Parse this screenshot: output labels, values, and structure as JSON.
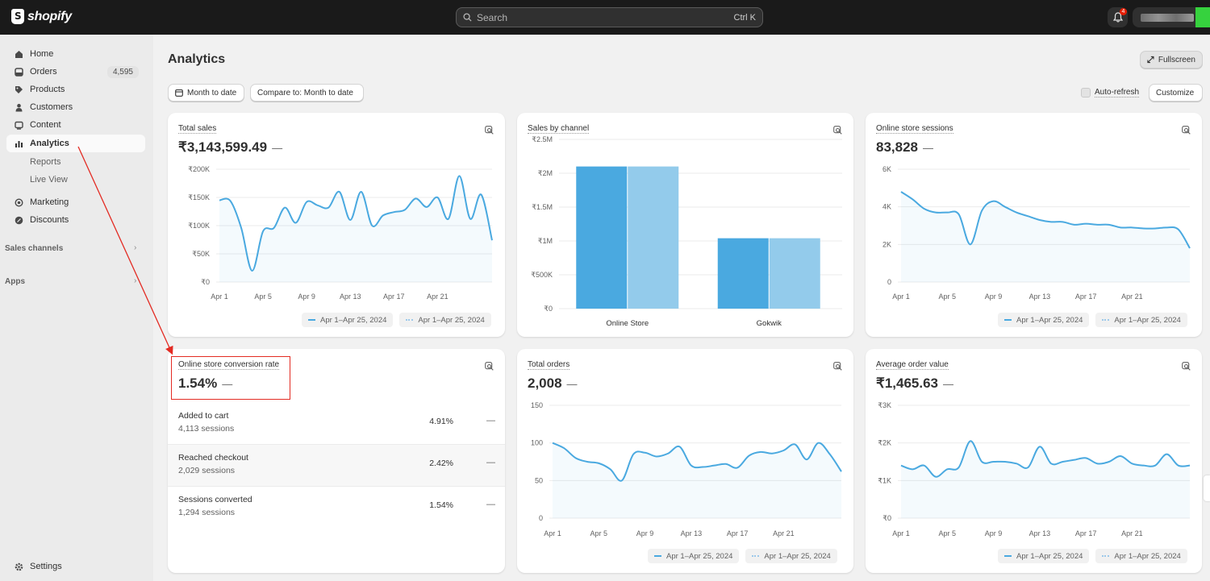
{
  "topbar": {
    "brand": "shopify",
    "search_placeholder": "Search",
    "search_shortcut": "Ctrl K",
    "notifications_count": "4"
  },
  "sidebar": {
    "items": [
      {
        "label": "Home",
        "icon": "home-icon"
      },
      {
        "label": "Orders",
        "icon": "orders-icon",
        "badge": "4,595"
      },
      {
        "label": "Products",
        "icon": "tag-icon"
      },
      {
        "label": "Customers",
        "icon": "person-icon"
      },
      {
        "label": "Content",
        "icon": "content-icon"
      },
      {
        "label": "Analytics",
        "icon": "analytics-icon",
        "active": true
      },
      {
        "label": "Marketing",
        "icon": "target-icon"
      },
      {
        "label": "Discounts",
        "icon": "discount-icon"
      }
    ],
    "analytics_sub": [
      "Reports",
      "Live View"
    ],
    "sales_channels_label": "Sales channels",
    "apps_label": "Apps",
    "settings_label": "Settings"
  },
  "header": {
    "title": "Analytics",
    "fullscreen_label": "Fullscreen",
    "date_range_label": "Month to date",
    "compare_label": "Compare to: Month to date",
    "auto_refresh_label": "Auto-refresh",
    "customize_label": "Customize"
  },
  "legend": {
    "current": "Apr 1–Apr 25, 2024",
    "previous": "Apr 1–Apr 25, 2024"
  },
  "colors": {
    "line": "#4aa9e0",
    "bar_primary": "#4aa9e0",
    "bar_secondary": "#93cbeb",
    "annotation": "#e32b23"
  },
  "cards": {
    "total_sales": {
      "title": "Total sales",
      "value": "₹3,143,599.49",
      "dash": "—",
      "chart_data": {
        "type": "line",
        "y_ticks": [
          "₹200K",
          "₹150K",
          "₹100K",
          "₹50K",
          "₹0"
        ],
        "ylim": [
          0,
          200000
        ],
        "x_ticks": [
          "Apr 1",
          "Apr 5",
          "Apr 9",
          "Apr 13",
          "Apr 17",
          "Apr 21"
        ],
        "series": [
          {
            "values": [
              145000,
              144000,
              96000,
              20000,
              90000,
              96000,
              132000,
              105000,
              142000,
              136000,
              132000,
              160000,
              110000,
              160000,
              100000,
              118000,
              124000,
              128000,
              148000,
              133000,
              150000,
              112000,
              188000,
              112000,
              155000,
              74000
            ]
          }
        ]
      }
    },
    "sales_by_channel": {
      "title": "Sales by channel",
      "chart_data": {
        "type": "bar",
        "y_ticks": [
          "₹2.5M",
          "₹2M",
          "₹1.5M",
          "₹1M",
          "₹500K",
          "₹0"
        ],
        "ylim": [
          0,
          2500000
        ],
        "categories": [
          "Online Store",
          "Gokwik"
        ],
        "series": [
          {
            "values": [
              2100000,
              1040000
            ]
          },
          {
            "values": [
              2100000,
              1040000
            ]
          }
        ]
      }
    },
    "sessions": {
      "title": "Online store sessions",
      "value": "83,828",
      "dash": "—",
      "chart_data": {
        "type": "line",
        "y_ticks": [
          "6K",
          "4K",
          "2K",
          "0"
        ],
        "ylim": [
          0,
          6000
        ],
        "x_ticks": [
          "Apr 1",
          "Apr 5",
          "Apr 9",
          "Apr 13",
          "Apr 17",
          "Apr 21"
        ],
        "series": [
          {
            "values": [
              4800,
              4400,
              3900,
              3700,
              3700,
              3600,
              2000,
              3800,
              4300,
              4000,
              3700,
              3500,
              3300,
              3200,
              3200,
              3050,
              3100,
              3050,
              3050,
              2900,
              2900,
              2850,
              2850,
              2900,
              2800,
              1800
            ]
          }
        ]
      }
    },
    "conversion": {
      "title": "Online store conversion rate",
      "value": "1.54%",
      "dash": "—",
      "rows": [
        {
          "label": "Added to cart",
          "sessions": "4,113 sessions",
          "pct": "4.91%",
          "dash": "—"
        },
        {
          "label": "Reached checkout",
          "sessions": "2,029 sessions",
          "pct": "2.42%",
          "dash": "—"
        },
        {
          "label": "Sessions converted",
          "sessions": "1,294 sessions",
          "pct": "1.54%",
          "dash": "—"
        }
      ]
    },
    "total_orders": {
      "title": "Total orders",
      "value": "2,008",
      "dash": "—",
      "chart_data": {
        "type": "line",
        "y_ticks": [
          "150",
          "100",
          "50",
          "0"
        ],
        "ylim": [
          0,
          150
        ],
        "x_ticks": [
          "Apr 1",
          "Apr 5",
          "Apr 9",
          "Apr 13",
          "Apr 17",
          "Apr 21"
        ],
        "series": [
          {
            "values": [
              100,
              93,
              80,
              75,
              73,
              65,
              50,
              85,
              87,
              82,
              86,
              95,
              70,
              68,
              70,
              72,
              67,
              83,
              88,
              86,
              90,
              98,
              78,
              100,
              85,
              62
            ]
          }
        ]
      }
    },
    "aov": {
      "title": "Average order value",
      "value": "₹1,465.63",
      "dash": "—",
      "chart_data": {
        "type": "line",
        "y_ticks": [
          "₹3K",
          "₹2K",
          "₹1K",
          "₹0"
        ],
        "ylim": [
          0,
          3000
        ],
        "x_ticks": [
          "Apr 1",
          "Apr 5",
          "Apr 9",
          "Apr 13",
          "Apr 17",
          "Apr 21"
        ],
        "series": [
          {
            "values": [
              1400,
              1300,
              1400,
              1100,
              1300,
              1350,
              2050,
              1500,
              1500,
              1500,
              1450,
              1350,
              1900,
              1450,
              1500,
              1550,
              1600,
              1450,
              1500,
              1650,
              1450,
              1400,
              1400,
              1700,
              1400,
              1400
            ]
          }
        ]
      }
    }
  }
}
